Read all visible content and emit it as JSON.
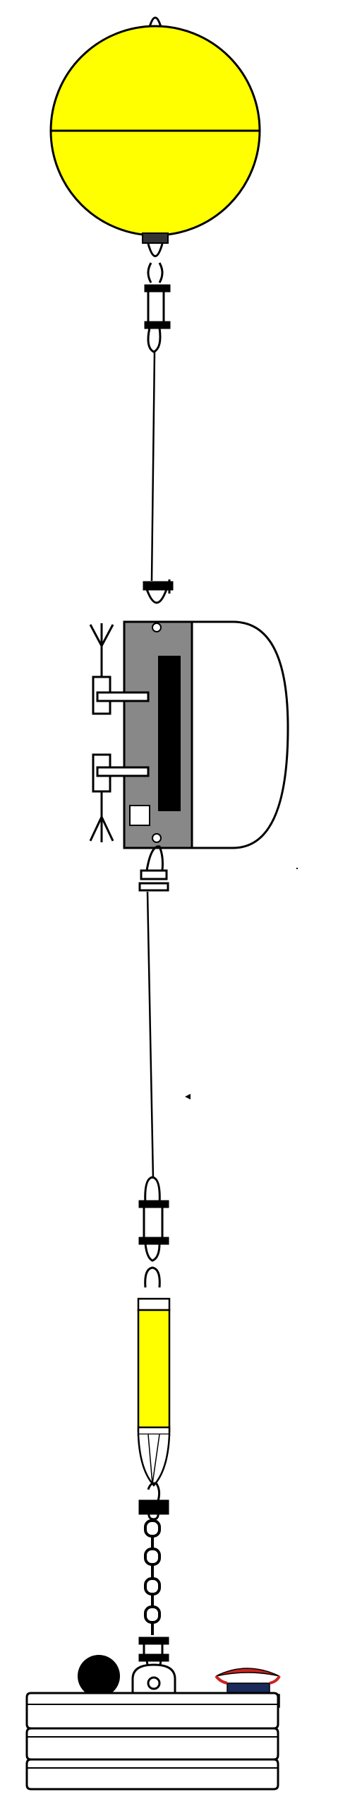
{
  "colors": {
    "float_fill": "#ffff00",
    "outline": "#000000",
    "instrument_body": "#888888",
    "instrument_window": "#000000",
    "dome_fill": "#ffffff",
    "anchor_ball": "#000000",
    "release_top": "#cc2222",
    "release_base": "#1a2a5a",
    "background": "#ffffff"
  },
  "icons": {
    "float": "spherical-float-icon",
    "swivel": "swivel-shackle-icon",
    "instrument": "current-meter-icon",
    "secondary_float": "cylindrical-float-icon",
    "chain": "chain-link-icon",
    "anchor": "anchor-weight-icon",
    "release": "acoustic-release-icon"
  }
}
